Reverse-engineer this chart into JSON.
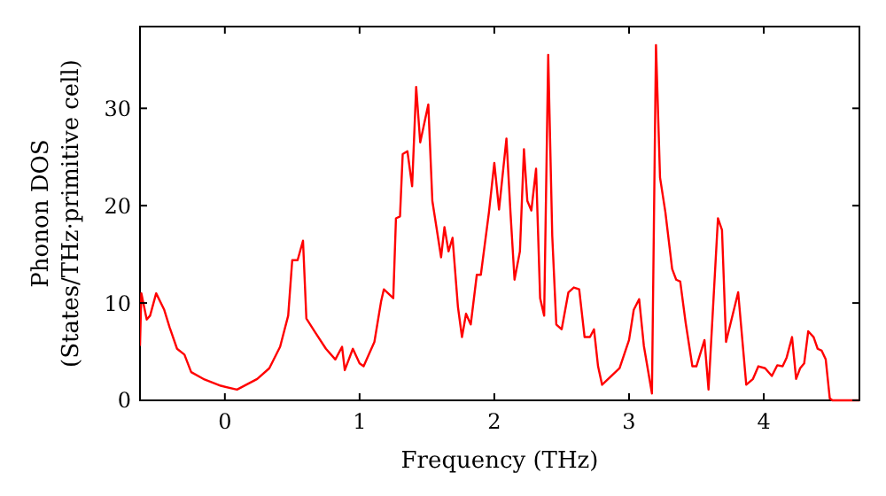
{
  "chart_data": {
    "type": "line",
    "xlabel": "Frequency (THz)",
    "ylabel": "Phonon DOS\n(States/THz·primitive cell)",
    "xlim": [
      -0.63,
      4.71
    ],
    "ylim": [
      0,
      38.4
    ],
    "xticks": [
      0,
      1,
      2,
      3,
      4
    ],
    "yticks": [
      0,
      10,
      20,
      30
    ],
    "grid": false,
    "marker": "none",
    "line_style": "solid",
    "series": [
      {
        "color": "#ff0000",
        "x": [
          -0.63,
          -0.62,
          -0.58,
          -0.555,
          -0.51,
          -0.45,
          -0.41,
          -0.355,
          -0.3,
          -0.25,
          -0.16,
          -0.03,
          0.09,
          0.24,
          0.33,
          0.41,
          0.47,
          0.5,
          0.54,
          0.58,
          0.605,
          0.67,
          0.75,
          0.82,
          0.87,
          0.89,
          0.95,
          1.0,
          1.03,
          1.11,
          1.16,
          1.18,
          1.25,
          1.27,
          1.3,
          1.32,
          1.355,
          1.39,
          1.42,
          1.45,
          1.51,
          1.54,
          1.605,
          1.63,
          1.66,
          1.69,
          1.73,
          1.76,
          1.79,
          1.825,
          1.87,
          1.9,
          1.96,
          2.0,
          2.035,
          2.09,
          2.12,
          2.15,
          2.19,
          2.22,
          2.245,
          2.275,
          2.31,
          2.34,
          2.37,
          2.4,
          2.43,
          2.46,
          2.5,
          2.55,
          2.59,
          2.63,
          2.67,
          2.71,
          2.74,
          2.77,
          2.8,
          2.93,
          3.0,
          3.035,
          3.075,
          3.11,
          3.17,
          3.2,
          3.23,
          3.27,
          3.32,
          3.35,
          3.38,
          3.42,
          3.47,
          3.5,
          3.56,
          3.59,
          3.66,
          3.69,
          3.72,
          3.81,
          3.87,
          3.92,
          3.96,
          4.01,
          4.06,
          4.1,
          4.14,
          4.17,
          4.21,
          4.24,
          4.27,
          4.3,
          4.33,
          4.37,
          4.4,
          4.43,
          4.46,
          4.49,
          4.51,
          4.71
        ],
        "values": [
          5.6,
          11,
          8.3,
          8.7,
          11,
          9.3,
          7.5,
          5.3,
          4.7,
          2.9,
          2.2,
          1.5,
          1.1,
          2.2,
          3.3,
          5.5,
          8.7,
          14.4,
          14.4,
          16.4,
          8.4,
          7,
          5.3,
          4.2,
          5.5,
          3.1,
          5.3,
          3.8,
          3.5,
          6,
          10.2,
          11.4,
          10.5,
          18.7,
          18.9,
          25.3,
          25.6,
          22,
          32.2,
          26.5,
          30.4,
          20.5,
          14.7,
          17.8,
          15.3,
          16.7,
          9.6,
          6.5,
          8.9,
          7.8,
          12.9,
          12.9,
          19.3,
          24.4,
          19.6,
          26.9,
          19.3,
          12.4,
          15.3,
          25.8,
          20.5,
          19.5,
          23.8,
          10.5,
          8.7,
          35.5,
          16.9,
          7.8,
          7.3,
          11.1,
          11.6,
          11.4,
          6.5,
          6.5,
          7.3,
          3.5,
          1.6,
          3.3,
          6.2,
          9.3,
          10.4,
          5.6,
          0.7,
          36.5,
          22.9,
          19.3,
          13.5,
          12.4,
          12.2,
          8,
          3.5,
          3.5,
          6.2,
          1.1,
          18.7,
          17.5,
          6,
          11.1,
          1.6,
          2.2,
          3.5,
          3.3,
          2.5,
          3.6,
          3.5,
          4.4,
          6.5,
          2.2,
          3.3,
          3.8,
          7.1,
          6.5,
          5.3,
          5.1,
          4.2,
          0.2,
          0,
          0
        ]
      }
    ]
  }
}
